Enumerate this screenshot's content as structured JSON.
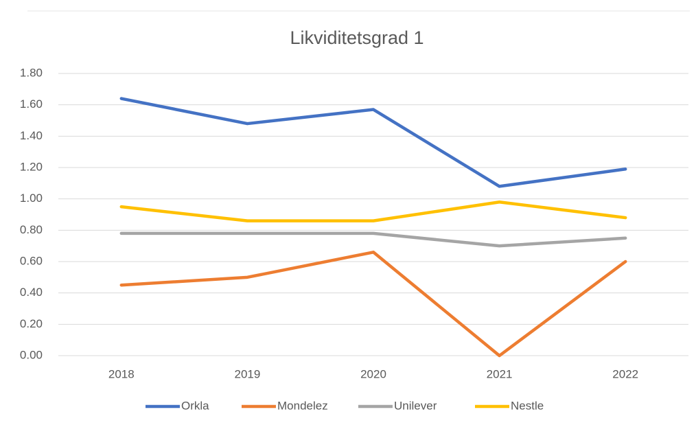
{
  "chart_data": {
    "type": "line",
    "title": "Likviditetsgrad 1",
    "categories": [
      "2018",
      "2019",
      "2020",
      "2021",
      "2022"
    ],
    "series": [
      {
        "name": "Orkla",
        "color": "#4472c4",
        "values": [
          1.64,
          1.48,
          1.57,
          1.08,
          1.19
        ]
      },
      {
        "name": "Mondelez",
        "color": "#ed7d31",
        "values": [
          0.45,
          0.5,
          0.66,
          0,
          0.6
        ]
      },
      {
        "name": "Unilever",
        "color": "#a5a5a5",
        "values": [
          0.78,
          0.78,
          0.78,
          0.7,
          0.75
        ]
      },
      {
        "name": "Nestle",
        "color": "#ffc000",
        "values": [
          0.95,
          0.86,
          0.86,
          0.98,
          0.88
        ]
      }
    ],
    "ylim": [
      0,
      1.8
    ],
    "yticks": [
      {
        "value": 0,
        "label": "0.00"
      },
      {
        "value": 0.2,
        "label": "0.20"
      },
      {
        "value": 0.4,
        "label": "0.40"
      },
      {
        "value": 0.6,
        "label": "0.60"
      },
      {
        "value": 0.8,
        "label": "0.80"
      },
      {
        "value": 1,
        "label": "1.00"
      },
      {
        "value": 1.2,
        "label": "1.20"
      },
      {
        "value": 1.4,
        "label": "1.40"
      },
      {
        "value": 1.6,
        "label": "1.60"
      },
      {
        "value": 1.8,
        "label": "1.80"
      }
    ],
    "grid": true,
    "legend": "bottom"
  }
}
